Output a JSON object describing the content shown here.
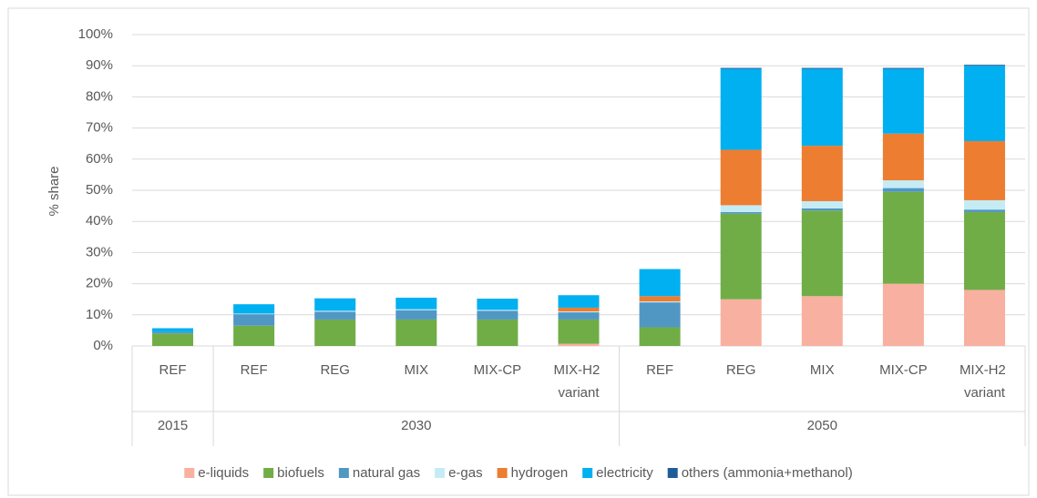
{
  "chart_data": {
    "type": "stacked_bar",
    "y_label": "% share",
    "groups": [
      {
        "name": "2015",
        "categories": [
          "REF"
        ]
      },
      {
        "name": "2030",
        "categories": [
          "REF",
          "REG",
          "MIX",
          "MIX-CP",
          "MIX-H2 variant"
        ]
      },
      {
        "name": "2050",
        "categories": [
          "REF",
          "REG",
          "MIX",
          "MIX-CP",
          "MIX-H2 variant"
        ]
      }
    ],
    "series": [
      {
        "name": "e-liquids",
        "color": "#f8b0a0",
        "values": [
          0,
          0,
          0,
          0,
          0,
          0.7,
          0,
          15,
          16,
          20,
          18
        ]
      },
      {
        "name": "biofuels",
        "color": "#70ad47",
        "values": [
          4,
          6.5,
          8.5,
          8.5,
          8.5,
          7.8,
          6,
          27.5,
          27.5,
          29.5,
          25
        ]
      },
      {
        "name": "natural gas",
        "color": "#5197c4",
        "values": [
          0.5,
          3.7,
          2.5,
          3,
          2.8,
          2.3,
          8,
          0.5,
          0.7,
          1.2,
          0.8
        ]
      },
      {
        "name": "e-gas",
        "color": "#c5ecf5",
        "values": [
          0,
          0.2,
          0.3,
          0.3,
          0.3,
          0.3,
          0.3,
          2.2,
          2.3,
          2.5,
          3
        ]
      },
      {
        "name": "hydrogen",
        "color": "#ed7d31",
        "values": [
          0,
          0,
          0,
          0,
          0,
          1.2,
          1.7,
          17.8,
          17.8,
          15,
          19
        ]
      },
      {
        "name": "electricity",
        "color": "#00b0f0",
        "values": [
          1.2,
          3,
          4,
          3.7,
          3.6,
          4,
          8.7,
          26,
          24.7,
          20.8,
          24.2
        ]
      },
      {
        "name": "others (ammonia+methanol)",
        "color": "#1f5d99",
        "values": [
          0,
          0,
          0,
          0,
          0,
          0,
          0,
          0.3,
          0.3,
          0.3,
          0.3
        ]
      }
    ],
    "ylim": [
      0,
      100
    ],
    "yticks": [
      {
        "value": 0,
        "label": "0%"
      },
      {
        "value": 10,
        "label": "10%"
      },
      {
        "value": 20,
        "label": "20%"
      },
      {
        "value": 30,
        "label": "30%"
      },
      {
        "value": 40,
        "label": "40%"
      },
      {
        "value": 50,
        "label": "50%"
      },
      {
        "value": 60,
        "label": "60%"
      },
      {
        "value": 70,
        "label": "70%"
      },
      {
        "value": 80,
        "label": "80%"
      },
      {
        "value": 90,
        "label": "90%"
      },
      {
        "value": 100,
        "label": "100%"
      }
    ],
    "grid": true,
    "legend": "bottom"
  }
}
